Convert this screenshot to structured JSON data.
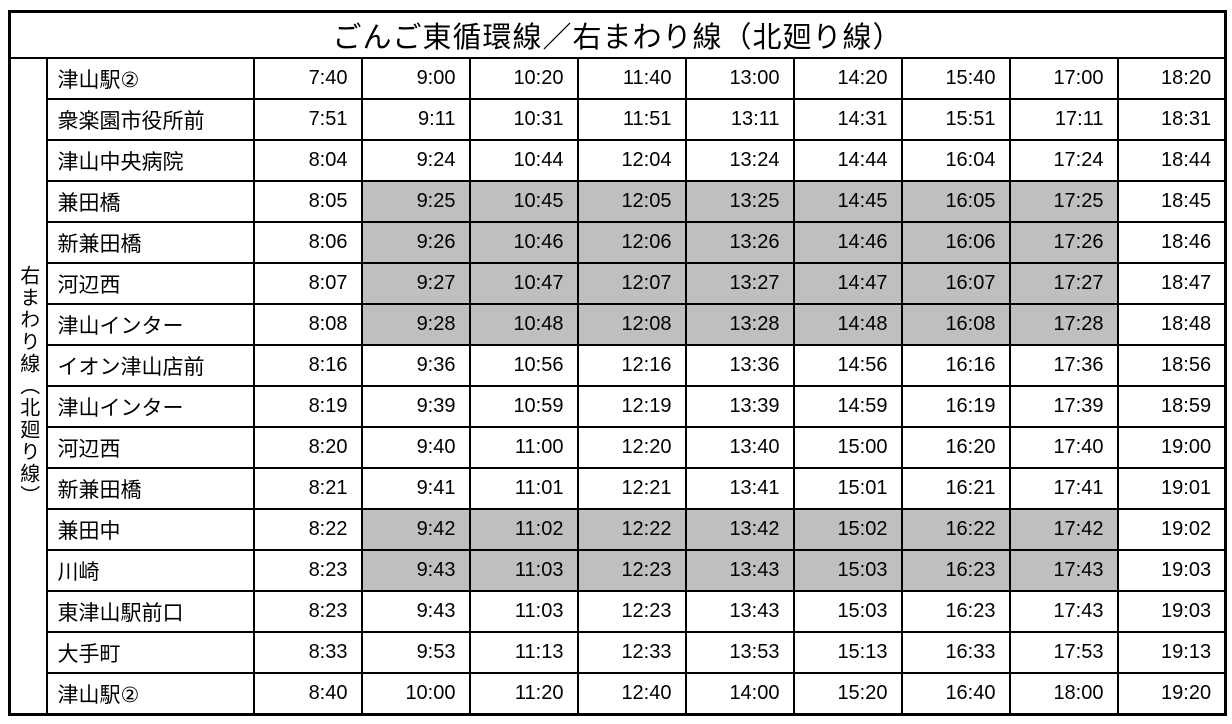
{
  "title": "ごんご東循環線／右まわり線（北廻り線）",
  "side_label": "右まわり線（北廻り線）",
  "colors": {
    "background": "#FFFFFF",
    "border": "#000000",
    "shaded_cell": "#BFBFBF",
    "text": "#000000"
  },
  "timetable": {
    "columns": 9,
    "rows": [
      {
        "station": "津山駅②",
        "times": [
          "7:40",
          "9:00",
          "10:20",
          "11:40",
          "13:00",
          "14:20",
          "15:40",
          "17:00",
          "18:20"
        ],
        "shaded": []
      },
      {
        "station": "衆楽園市役所前",
        "times": [
          "7:51",
          "9:11",
          "10:31",
          "11:51",
          "13:11",
          "14:31",
          "15:51",
          "17:11",
          "18:31"
        ],
        "shaded": []
      },
      {
        "station": "津山中央病院",
        "times": [
          "8:04",
          "9:24",
          "10:44",
          "12:04",
          "13:24",
          "14:44",
          "16:04",
          "17:24",
          "18:44"
        ],
        "shaded": []
      },
      {
        "station": "兼田橋",
        "times": [
          "8:05",
          "9:25",
          "10:45",
          "12:05",
          "13:25",
          "14:45",
          "16:05",
          "17:25",
          "18:45"
        ],
        "shaded": [
          1,
          2,
          3,
          4,
          5,
          6,
          7
        ]
      },
      {
        "station": "新兼田橋",
        "times": [
          "8:06",
          "9:26",
          "10:46",
          "12:06",
          "13:26",
          "14:46",
          "16:06",
          "17:26",
          "18:46"
        ],
        "shaded": [
          1,
          2,
          3,
          4,
          5,
          6,
          7
        ]
      },
      {
        "station": "河辺西",
        "times": [
          "8:07",
          "9:27",
          "10:47",
          "12:07",
          "13:27",
          "14:47",
          "16:07",
          "17:27",
          "18:47"
        ],
        "shaded": [
          1,
          2,
          3,
          4,
          5,
          6,
          7
        ]
      },
      {
        "station": "津山インター",
        "times": [
          "8:08",
          "9:28",
          "10:48",
          "12:08",
          "13:28",
          "14:48",
          "16:08",
          "17:28",
          "18:48"
        ],
        "shaded": [
          1,
          2,
          3,
          4,
          5,
          6,
          7
        ]
      },
      {
        "station": "イオン津山店前",
        "times": [
          "8:16",
          "9:36",
          "10:56",
          "12:16",
          "13:36",
          "14:56",
          "16:16",
          "17:36",
          "18:56"
        ],
        "shaded": []
      },
      {
        "station": "津山インター",
        "times": [
          "8:19",
          "9:39",
          "10:59",
          "12:19",
          "13:39",
          "14:59",
          "16:19",
          "17:39",
          "18:59"
        ],
        "shaded": []
      },
      {
        "station": "河辺西",
        "times": [
          "8:20",
          "9:40",
          "11:00",
          "12:20",
          "13:40",
          "15:00",
          "16:20",
          "17:40",
          "19:00"
        ],
        "shaded": []
      },
      {
        "station": "新兼田橋",
        "times": [
          "8:21",
          "9:41",
          "11:01",
          "12:21",
          "13:41",
          "15:01",
          "16:21",
          "17:41",
          "19:01"
        ],
        "shaded": []
      },
      {
        "station": "兼田中",
        "times": [
          "8:22",
          "9:42",
          "11:02",
          "12:22",
          "13:42",
          "15:02",
          "16:22",
          "17:42",
          "19:02"
        ],
        "shaded": [
          1,
          2,
          3,
          4,
          5,
          6,
          7
        ]
      },
      {
        "station": "川崎",
        "times": [
          "8:23",
          "9:43",
          "11:03",
          "12:23",
          "13:43",
          "15:03",
          "16:23",
          "17:43",
          "19:03"
        ],
        "shaded": [
          1,
          2,
          3,
          4,
          5,
          6,
          7
        ]
      },
      {
        "station": "東津山駅前口",
        "times": [
          "8:23",
          "9:43",
          "11:03",
          "12:23",
          "13:43",
          "15:03",
          "16:23",
          "17:43",
          "19:03"
        ],
        "shaded": []
      },
      {
        "station": "大手町",
        "times": [
          "8:33",
          "9:53",
          "11:13",
          "12:33",
          "13:53",
          "15:13",
          "16:33",
          "17:53",
          "19:13"
        ],
        "shaded": []
      },
      {
        "station": "津山駅②",
        "times": [
          "8:40",
          "10:00",
          "11:20",
          "12:40",
          "14:00",
          "15:20",
          "16:40",
          "18:00",
          "19:20"
        ],
        "shaded": []
      }
    ]
  }
}
